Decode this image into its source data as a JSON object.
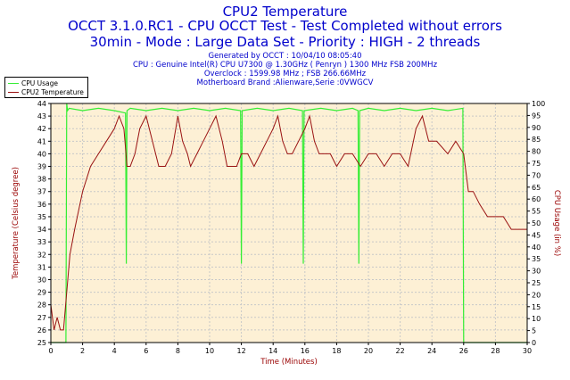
{
  "header": {
    "title": "CPU2 Temperature",
    "subtitle1": "OCCT 3.1.0.RC1 - CPU OCCT Test - Test Completed without errors",
    "subtitle2": "30min - Mode : Large Data Set - Priority : HIGH - 2 threads",
    "info": [
      "Generated by OCCT : 10/04/10 08:05:40",
      "CPU : Genuine Intel(R) CPU U7300 @ 1.30GHz ( Penryn ) 1300 MHz FSB 200MHz",
      "Overclock : 1599.98 MHz ; FSB 266.66MHz",
      "Motherboard Brand :Alienware,Serie :0VWGCV"
    ]
  },
  "colors": {
    "cpu_usage": "#33ee33",
    "temperature": "#991111",
    "plot_bg": "#fdf0d5",
    "grid": "#c8c8c8",
    "left_axis_label": "#990000",
    "right_axis_label": "#990000",
    "x_axis_label": "#990000"
  },
  "chart_data": {
    "type": "line",
    "xlabel": "Time (Minutes)",
    "ylabel": "Temperature (Celsius degree)",
    "y2label": "CPU Usage (in %)",
    "xlim": [
      0,
      30
    ],
    "ylim": [
      25,
      44
    ],
    "y2lim": [
      0,
      100
    ],
    "xticks": [
      0,
      2,
      4,
      6,
      8,
      10,
      12,
      14,
      16,
      18,
      20,
      22,
      24,
      26,
      28,
      30
    ],
    "yticks": [
      25,
      26,
      27,
      28,
      29,
      30,
      31,
      32,
      33,
      34,
      35,
      36,
      37,
      38,
      39,
      40,
      41,
      42,
      43,
      44
    ],
    "y2ticks": [
      0,
      5,
      10,
      15,
      20,
      25,
      30,
      35,
      40,
      45,
      50,
      55,
      60,
      65,
      70,
      75,
      80,
      85,
      90,
      95,
      100
    ],
    "grid": true,
    "legend": "top-left",
    "series": [
      {
        "name": "CPU Usage",
        "axis": "right",
        "x": [
          0,
          0.95,
          1.0,
          1.05,
          1.15,
          2,
          3,
          4,
          4.7,
          4.75,
          4.8,
          5,
          6,
          7,
          8,
          9,
          10,
          11,
          11.95,
          12.0,
          12.05,
          13,
          14,
          15,
          15.85,
          15.9,
          15.95,
          17,
          18,
          19,
          19.35,
          19.4,
          19.45,
          20,
          21,
          22,
          23,
          24,
          25,
          25.95,
          26.0,
          26.05,
          27,
          28,
          29,
          30
        ],
        "values": [
          0,
          0,
          100,
          97,
          98,
          97,
          98,
          97,
          96,
          33,
          97,
          98,
          97,
          98,
          97,
          98,
          97,
          98,
          97,
          33,
          97,
          98,
          97,
          98,
          97,
          33,
          97,
          98,
          97,
          98,
          97,
          33,
          97,
          98,
          97,
          98,
          97,
          98,
          97,
          98,
          0,
          0,
          0,
          0,
          0,
          0
        ]
      },
      {
        "name": "CPU2 Temperature",
        "axis": "left",
        "x": [
          0,
          0.2,
          0.4,
          0.6,
          0.8,
          1.0,
          1.2,
          1.5,
          2.0,
          2.5,
          3.0,
          3.5,
          4.0,
          4.3,
          4.6,
          4.8,
          5.0,
          5.3,
          5.6,
          6.0,
          6.4,
          6.8,
          7.2,
          7.6,
          8.0,
          8.3,
          8.6,
          8.8,
          9.2,
          9.6,
          10.0,
          10.4,
          10.8,
          11.1,
          11.4,
          11.7,
          12.0,
          12.4,
          12.8,
          13.2,
          13.6,
          14.0,
          14.3,
          14.6,
          14.9,
          15.2,
          15.6,
          16.0,
          16.3,
          16.6,
          16.9,
          17.2,
          17.6,
          18.0,
          18.5,
          19.0,
          19.5,
          20.0,
          20.5,
          21.0,
          21.5,
          22.0,
          22.5,
          23.0,
          23.4,
          23.8,
          24.3,
          25.0,
          25.5,
          26.0,
          26.3,
          26.6,
          27.0,
          27.5,
          28.0,
          28.5,
          29.0,
          29.5,
          30.0
        ],
        "values": [
          28,
          26,
          27,
          26,
          26,
          29,
          32,
          34,
          37,
          39,
          40,
          41,
          42,
          43,
          42,
          39,
          39,
          40,
          42,
          43,
          41,
          39,
          39,
          40,
          43,
          41,
          40,
          39,
          40,
          41,
          42,
          43,
          41,
          39,
          39,
          39,
          40,
          40,
          39,
          40,
          41,
          42,
          43,
          41,
          40,
          40,
          41,
          42,
          43,
          41,
          40,
          40,
          40,
          39,
          40,
          40,
          39,
          40,
          40,
          39,
          40,
          40,
          39,
          42,
          43,
          41,
          41,
          40,
          41,
          40,
          37,
          37,
          36,
          35,
          35,
          35,
          34,
          34,
          34
        ]
      }
    ]
  }
}
